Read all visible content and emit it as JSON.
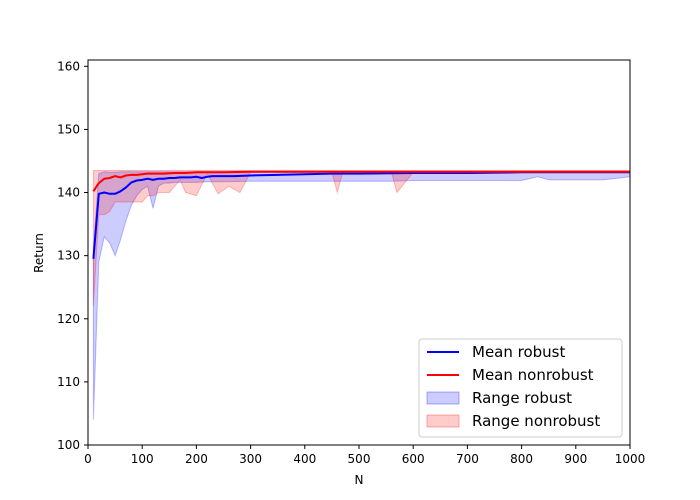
{
  "chart_data": {
    "type": "line",
    "title": "",
    "xlabel": "N",
    "ylabel": "Return",
    "xlim": [
      0,
      1000
    ],
    "ylim": [
      100,
      161
    ],
    "x_ticks": [
      "0",
      "100",
      "200",
      "300",
      "400",
      "500",
      "600",
      "700",
      "800",
      "900",
      "1000"
    ],
    "y_ticks": [
      "100",
      "110",
      "120",
      "130",
      "140",
      "150",
      "160"
    ],
    "x_tick_values": [
      0,
      100,
      200,
      300,
      400,
      500,
      600,
      700,
      800,
      900,
      1000
    ],
    "y_tick_values": [
      100,
      110,
      120,
      130,
      140,
      150,
      160
    ],
    "legend_position": "lower-right",
    "series": [
      {
        "name": "Mean robust",
        "kind": "line",
        "color": "#0000ff",
        "x": [
          10,
          20,
          30,
          40,
          50,
          60,
          70,
          80,
          90,
          100,
          110,
          120,
          130,
          140,
          150,
          160,
          170,
          180,
          190,
          200,
          210,
          220,
          230,
          250,
          270,
          300,
          350,
          400,
          450,
          500,
          600,
          700,
          800,
          900,
          1000
        ],
        "y": [
          129.5,
          139.8,
          140.0,
          139.8,
          139.8,
          140.2,
          140.8,
          141.6,
          141.9,
          142.0,
          142.2,
          142.0,
          142.2,
          142.2,
          142.3,
          142.3,
          142.4,
          142.4,
          142.4,
          142.5,
          142.3,
          142.5,
          142.6,
          142.6,
          142.6,
          142.7,
          142.8,
          142.9,
          143.0,
          143.0,
          143.1,
          143.1,
          143.2,
          143.2,
          143.2
        ]
      },
      {
        "name": "Mean nonrobust",
        "kind": "line",
        "color": "#ff0000",
        "x": [
          10,
          20,
          30,
          40,
          50,
          60,
          70,
          80,
          90,
          100,
          110,
          120,
          140,
          160,
          180,
          200,
          250,
          300,
          350,
          400,
          500,
          600,
          700,
          800,
          900,
          1000
        ],
        "y": [
          140.2,
          141.5,
          142.2,
          142.3,
          142.6,
          142.4,
          142.7,
          142.8,
          142.8,
          142.9,
          143.0,
          143.0,
          143.0,
          143.1,
          143.1,
          143.2,
          143.2,
          143.3,
          143.3,
          143.3,
          143.3,
          143.3,
          143.3,
          143.3,
          143.3,
          143.3
        ]
      },
      {
        "name": "Range robust",
        "kind": "band",
        "color": "#0000ff",
        "x": [
          10,
          20,
          30,
          40,
          50,
          60,
          70,
          80,
          90,
          100,
          110,
          120,
          130,
          140,
          150,
          160,
          180,
          200,
          220,
          250,
          300,
          330,
          400,
          450,
          500,
          560,
          600,
          700,
          750,
          800,
          830,
          850,
          880,
          900,
          950,
          1000
        ],
        "lower": [
          104.0,
          129.0,
          133.0,
          132.0,
          130.0,
          132.5,
          135.5,
          138.0,
          139.5,
          140.5,
          141.0,
          137.5,
          141.0,
          141.5,
          141.5,
          141.6,
          141.6,
          141.6,
          141.7,
          141.7,
          141.8,
          141.8,
          141.8,
          141.8,
          141.8,
          141.8,
          141.9,
          141.9,
          141.9,
          141.9,
          142.5,
          142.0,
          142.0,
          142.0,
          142.0,
          142.5
        ],
        "upper": [
          131.0,
          143.0,
          143.3,
          143.2,
          143.2,
          143.3,
          143.3,
          143.3,
          143.3,
          143.3,
          143.3,
          143.3,
          143.3,
          143.3,
          143.3,
          143.3,
          143.3,
          143.3,
          143.3,
          143.3,
          143.3,
          143.3,
          143.3,
          143.3,
          143.3,
          143.3,
          143.3,
          143.3,
          143.3,
          143.3,
          143.3,
          143.3,
          143.3,
          143.3,
          143.3,
          143.3
        ]
      },
      {
        "name": "Range nonrobust",
        "kind": "band",
        "color": "#ff0000",
        "x": [
          10,
          20,
          30,
          40,
          50,
          60,
          70,
          80,
          90,
          100,
          110,
          120,
          130,
          150,
          170,
          180,
          200,
          220,
          240,
          260,
          280,
          300,
          350,
          400,
          450,
          460,
          470,
          500,
          560,
          570,
          600,
          700,
          800,
          900,
          1000
        ],
        "lower": [
          122.0,
          136.5,
          136.5,
          137.0,
          138.5,
          138.5,
          138.5,
          138.5,
          138.5,
          138.5,
          139.5,
          139.5,
          140.0,
          140.0,
          142.0,
          140.0,
          139.5,
          143.0,
          139.8,
          141.0,
          140.0,
          143.2,
          143.2,
          143.2,
          143.2,
          140.0,
          143.2,
          143.2,
          143.2,
          140.0,
          143.2,
          143.2,
          143.2,
          143.2,
          143.3
        ],
        "upper": [
          143.5,
          143.5,
          143.5,
          143.5,
          143.5,
          143.5,
          143.5,
          143.5,
          143.5,
          143.5,
          143.5,
          143.5,
          143.5,
          143.5,
          143.5,
          143.5,
          143.5,
          143.5,
          143.5,
          143.5,
          143.5,
          143.5,
          143.5,
          143.5,
          143.5,
          143.5,
          143.5,
          143.5,
          143.5,
          143.5,
          143.5,
          143.5,
          143.5,
          143.5,
          143.5
        ]
      }
    ]
  }
}
